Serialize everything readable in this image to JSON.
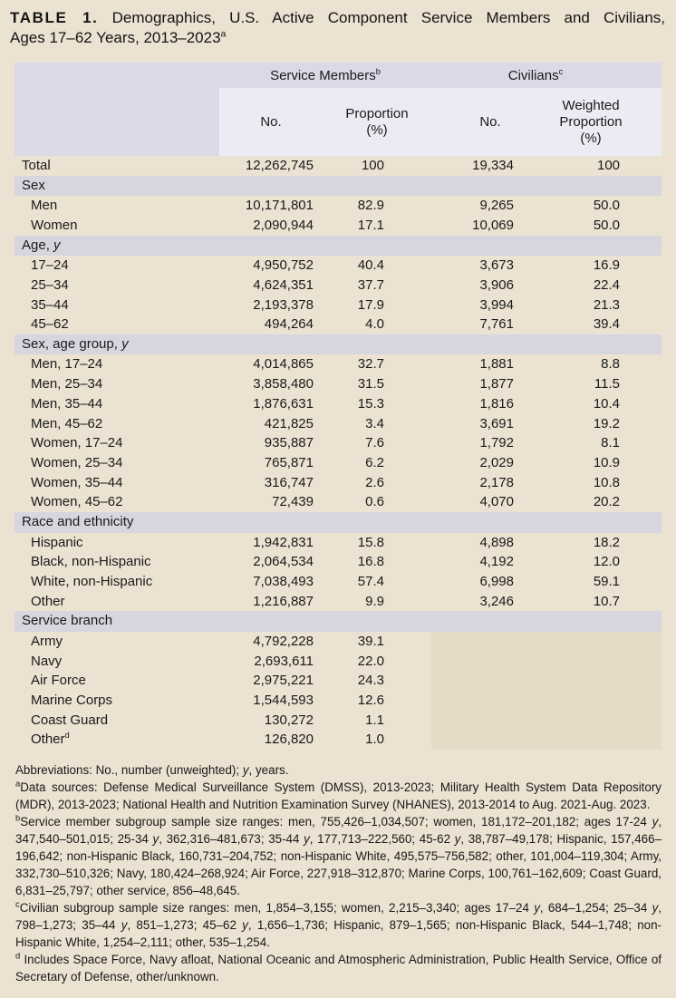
{
  "colors": {
    "page_bg": "#EBE2D1",
    "header_band": "#D9D9E7",
    "subheader": "#EBEBF3",
    "section_band": "#D7D6DE",
    "civilian_blank": "#E5DCC8",
    "text": "#1a1a1a"
  },
  "title": {
    "label": "TABLE 1.",
    "line1": "Demographics, U.S. Active Component Service Members and Civilians,",
    "line2_html": "Ages 17–62 Years, 2013–2023<sup>a</sup>"
  },
  "table": {
    "group_headers": [
      {
        "label_html": "Service Members<sup>b</sup>"
      },
      {
        "label_html": "Civilians<sup>c</sup>"
      }
    ],
    "column_headers": [
      "No.",
      "Proportion\n(%)",
      "No.",
      "Weighted\nProportion\n(%)"
    ],
    "rows": [
      {
        "type": "data",
        "level": 0,
        "label_html": "Total",
        "cells": [
          "12,262,745",
          "100",
          "19,334",
          "100"
        ]
      },
      {
        "type": "section",
        "label_html": "Sex"
      },
      {
        "type": "data",
        "level": 1,
        "label_html": "Men",
        "cells": [
          "10,171,801",
          "82.9",
          "9,265",
          "50.0"
        ]
      },
      {
        "type": "data",
        "level": 1,
        "label_html": "Women",
        "cells": [
          "2,090,944",
          "17.1",
          "10,069",
          "50.0"
        ]
      },
      {
        "type": "section",
        "label_html": "Age, <i>y</i>"
      },
      {
        "type": "data",
        "level": 1,
        "label_html": "17–24",
        "cells": [
          "4,950,752",
          "40.4",
          "3,673",
          "16.9"
        ]
      },
      {
        "type": "data",
        "level": 1,
        "label_html": "25–34",
        "cells": [
          "4,624,351",
          "37.7",
          "3,906",
          "22.4"
        ]
      },
      {
        "type": "data",
        "level": 1,
        "label_html": "35–44",
        "cells": [
          "2,193,378",
          "17.9",
          "3,994",
          "21.3"
        ]
      },
      {
        "type": "data",
        "level": 1,
        "label_html": "45–62",
        "cells": [
          "494,264",
          "4.0",
          "7,761",
          "39.4"
        ]
      },
      {
        "type": "section",
        "label_html": "Sex, age group, <i>y</i>"
      },
      {
        "type": "data",
        "level": 1,
        "label_html": "Men, 17–24",
        "cells": [
          "4,014,865",
          "32.7",
          "1,881",
          "8.8"
        ]
      },
      {
        "type": "data",
        "level": 1,
        "label_html": "Men, 25–34",
        "cells": [
          "3,858,480",
          "31.5",
          "1,877",
          "11.5"
        ]
      },
      {
        "type": "data",
        "level": 1,
        "label_html": "Men, 35–44",
        "cells": [
          "1,876,631",
          "15.3",
          "1,816",
          "10.4"
        ]
      },
      {
        "type": "data",
        "level": 1,
        "label_html": "Men, 45–62",
        "cells": [
          "421,825",
          "3.4",
          "3,691",
          "19.2"
        ]
      },
      {
        "type": "data",
        "level": 1,
        "label_html": "Women, 17–24",
        "cells": [
          "935,887",
          "7.6",
          "1,792",
          "8.1"
        ]
      },
      {
        "type": "data",
        "level": 1,
        "label_html": "Women, 25–34",
        "cells": [
          "765,871",
          "6.2",
          "2,029",
          "10.9"
        ]
      },
      {
        "type": "data",
        "level": 1,
        "label_html": "Women, 35–44",
        "cells": [
          "316,747",
          "2.6",
          "2,178",
          "10.8"
        ]
      },
      {
        "type": "data",
        "level": 1,
        "label_html": "Women, 45–62",
        "cells": [
          "72,439",
          "0.6",
          "4,070",
          "20.2"
        ]
      },
      {
        "type": "section",
        "label_html": "Race and ethnicity"
      },
      {
        "type": "data",
        "level": 1,
        "label_html": "Hispanic",
        "cells": [
          "1,942,831",
          "15.8",
          "4,898",
          "18.2"
        ]
      },
      {
        "type": "data",
        "level": 1,
        "label_html": "Black, non-Hispanic",
        "cells": [
          "2,064,534",
          "16.8",
          "4,192",
          "12.0"
        ]
      },
      {
        "type": "data",
        "level": 1,
        "label_html": "White, non-Hispanic",
        "cells": [
          "7,038,493",
          "57.4",
          "6,998",
          "59.1"
        ]
      },
      {
        "type": "data",
        "level": 1,
        "label_html": "Other",
        "cells": [
          "1,216,887",
          "9.9",
          "3,246",
          "10.7"
        ]
      },
      {
        "type": "section",
        "label_html": "Service branch"
      },
      {
        "type": "data",
        "level": 1,
        "label_html": "Army",
        "cells": [
          "4,792,228",
          "39.1",
          "",
          ""
        ],
        "civ_shaded": true
      },
      {
        "type": "data",
        "level": 1,
        "label_html": "Navy",
        "cells": [
          "2,693,611",
          "22.0",
          "",
          ""
        ],
        "civ_shaded": true
      },
      {
        "type": "data",
        "level": 1,
        "label_html": "Air Force",
        "cells": [
          "2,975,221",
          "24.3",
          "",
          ""
        ],
        "civ_shaded": true
      },
      {
        "type": "data",
        "level": 1,
        "label_html": "Marine Corps",
        "cells": [
          "1,544,593",
          "12.6",
          "",
          ""
        ],
        "civ_shaded": true
      },
      {
        "type": "data",
        "level": 1,
        "label_html": "Coast Guard",
        "cells": [
          "130,272",
          "1.1",
          "",
          ""
        ],
        "civ_shaded": true
      },
      {
        "type": "data",
        "level": 1,
        "label_html": "Other<sup>d</sup>",
        "cells": [
          "126,820",
          "1.0",
          "",
          ""
        ],
        "civ_shaded": true
      }
    ]
  },
  "footnotes": [
    "Abbreviations: No., number (unweighted); <i>y</i>, years.",
    "<sup>a</sup>Data sources: Defense Medical Surveillance System (DMSS), 2013-2023; Military Health System Data Repository (MDR), 2013-2023; National Health and Nutrition Examination Survey (NHANES), 2013-2014 to Aug. 2021-Aug. 2023.",
    "<sup>b</sup>Service member subgroup sample size ranges: men, 755,426–1,034,507; women, 181,172–201,182; ages 17-24 <i>y</i>, 347,540–501,015; 25-34 <i>y</i>, 362,316–481,673; 35-44 <i>y</i>, 177,713–222,560; 45-62 <i>y</i>, 38,787–49,178; Hispanic, 157,466–196,642; non-Hispanic Black, 160,731–204,752; non-Hispanic White, 495,575–756,582; other, 101,004–119,304; Army, 332,730–510,326; Navy, 180,424–268,924; Air Force, 227,918–312,870; Marine Corps, 100,761–162,609; Coast Guard, 6,831–25,797; other service, 856–48,645.",
    "<sup>c</sup>Civilian subgroup sample size ranges: men, 1,854–3,155; women, 2,215–3,340; ages 17–24 <i>y</i>, 684–1,254; 25–34 <i>y</i>, 798–1,273; 35–44 <i>y</i>, 851–1,273; 45–62 <i>y</i>, 1,656–1,736; Hispanic, 879–1,565; non-Hispanic Black, 544–1,748; non-Hispanic White, 1,254–2,111; other, 535–1,254.",
    "<sup>d</sup> Includes Space Force, Navy afloat, National Oceanic and Atmospheric Administration, Public Health Service, Office of Secretary of Defense, other/unknown."
  ]
}
